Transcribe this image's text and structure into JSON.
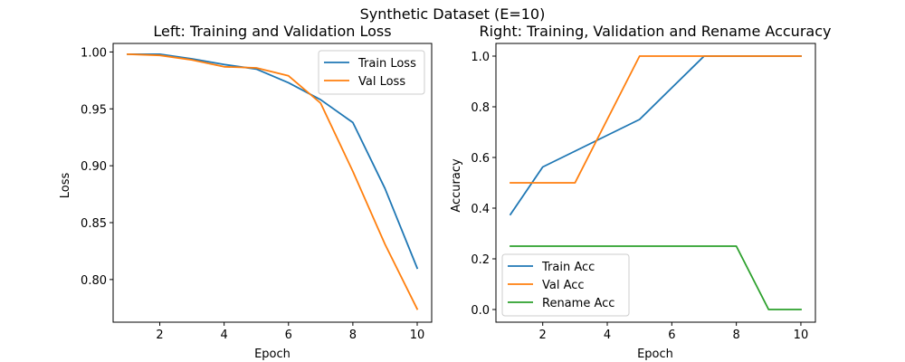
{
  "figure_title": "Synthetic Dataset (E=10)",
  "chart_data": [
    {
      "type": "line",
      "title": "Left: Training and Validation Loss",
      "xlabel": "Epoch",
      "ylabel": "Loss",
      "xlim": [
        0.55,
        10.45
      ],
      "ylim": [
        0.7625,
        1.0075
      ],
      "x": [
        1,
        2,
        3,
        4,
        5,
        6,
        7,
        8,
        9,
        10
      ],
      "xticks": [
        2,
        4,
        6,
        8,
        10
      ],
      "yticks": [
        0.8,
        0.85,
        0.9,
        0.95,
        1.0
      ],
      "xtick_labels": [
        "2",
        "4",
        "6",
        "8",
        "10"
      ],
      "ytick_labels": [
        "0.80",
        "0.85",
        "0.90",
        "0.95",
        "1.00"
      ],
      "grid": false,
      "legend_position": "top-right",
      "series": [
        {
          "name": "Train Loss",
          "color": "#1f77b4",
          "values": [
            0.998,
            0.998,
            0.994,
            0.989,
            0.985,
            0.973,
            0.958,
            0.938,
            0.88,
            0.81
          ]
        },
        {
          "name": "Val Loss",
          "color": "#ff7f0e",
          "values": [
            0.998,
            0.997,
            0.993,
            0.987,
            0.986,
            0.979,
            0.955,
            0.895,
            0.831,
            0.774
          ]
        }
      ]
    },
    {
      "type": "line",
      "title": "Right: Training, Validation and Rename Accuracy",
      "xlabel": "Epoch",
      "ylabel": "Accuracy",
      "xlim": [
        0.55,
        10.45
      ],
      "ylim": [
        -0.05,
        1.05
      ],
      "x": [
        1,
        2,
        3,
        4,
        5,
        6,
        7,
        8,
        9,
        10
      ],
      "xticks": [
        2,
        4,
        6,
        8,
        10
      ],
      "yticks": [
        0.0,
        0.2,
        0.4,
        0.6,
        0.8,
        1.0
      ],
      "xtick_labels": [
        "2",
        "4",
        "6",
        "8",
        "10"
      ],
      "ytick_labels": [
        "0.0",
        "0.2",
        "0.4",
        "0.6",
        "0.8",
        "1.0"
      ],
      "grid": false,
      "legend_position": "bottom-left",
      "series": [
        {
          "name": "Train Acc",
          "color": "#1f77b4",
          "values": [
            0.375,
            0.5625,
            0.625,
            0.6875,
            0.75,
            0.875,
            1.0,
            1.0,
            1.0,
            1.0
          ]
        },
        {
          "name": "Val Acc",
          "color": "#ff7f0e",
          "values": [
            0.5,
            0.5,
            0.5,
            0.75,
            1.0,
            1.0,
            1.0,
            1.0,
            1.0,
            1.0
          ]
        },
        {
          "name": "Rename Acc",
          "color": "#2ca02c",
          "values": [
            0.25,
            0.25,
            0.25,
            0.25,
            0.25,
            0.25,
            0.25,
            0.25,
            0.0,
            0.0
          ]
        }
      ]
    }
  ]
}
